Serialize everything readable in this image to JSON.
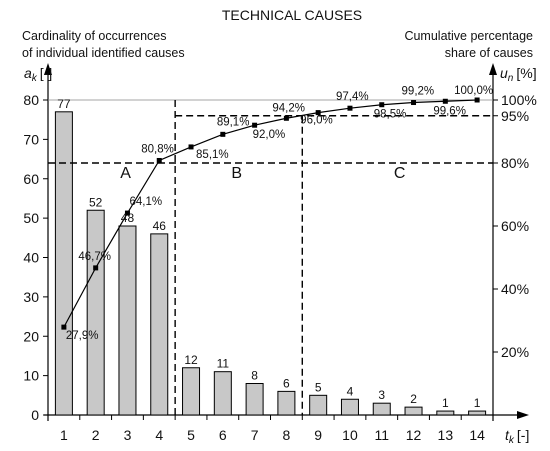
{
  "chart_data": {
    "type": "bar",
    "title": "TECHNICAL CAUSES",
    "ylabel_left_line1": "Cardinality of occurrences",
    "ylabel_left_line2": "of individual identified causes",
    "ylabel_right_line1": "Cumulative percentage",
    "ylabel_right_line2": "share of causes",
    "left_axis_symbol": "a",
    "left_axis_subscript": "k",
    "left_axis_unit": "[-]",
    "right_axis_symbol": "u",
    "right_axis_subscript": "n",
    "right_axis_unit": "[%]",
    "x_axis_symbol": "t",
    "x_axis_subscript": "k",
    "x_axis_unit": "[-]",
    "categories": [
      "1",
      "2",
      "3",
      "4",
      "5",
      "6",
      "7",
      "8",
      "9",
      "10",
      "11",
      "12",
      "13",
      "14"
    ],
    "values": [
      77,
      52,
      48,
      46,
      12,
      11,
      8,
      6,
      5,
      4,
      3,
      2,
      1,
      1
    ],
    "cumulative": [
      27.9,
      46.7,
      64.1,
      80.8,
      85.1,
      89.1,
      92.0,
      94.2,
      96.0,
      97.4,
      98.5,
      99.2,
      99.6,
      100.0
    ],
    "cumulative_labels": [
      "27,9%",
      "46,7%",
      "64,1%",
      "80,8%",
      "85,1%",
      "89,1%",
      "92,0%",
      "94,2%",
      "96,0%",
      "97,4%",
      "98,5%",
      "99,2%",
      "99,6%",
      "100,0%"
    ],
    "ylim_left": [
      0,
      80
    ],
    "left_ticks": [
      0,
      10,
      20,
      30,
      40,
      50,
      60,
      70,
      80
    ],
    "ylim_right": [
      0,
      100
    ],
    "right_ticks": [
      "20%",
      "40%",
      "60%",
      "80%",
      "95%",
      "100%"
    ],
    "right_tick_values": [
      20,
      40,
      60,
      80,
      95,
      100
    ],
    "zones": [
      "A",
      "B",
      "C"
    ],
    "zone_boundaries_after_category": [
      4,
      8
    ],
    "threshold_lines_percent": [
      80,
      95
    ],
    "reference_line_percent": 100,
    "bar_color": "#c8c8c8",
    "grid": false
  }
}
